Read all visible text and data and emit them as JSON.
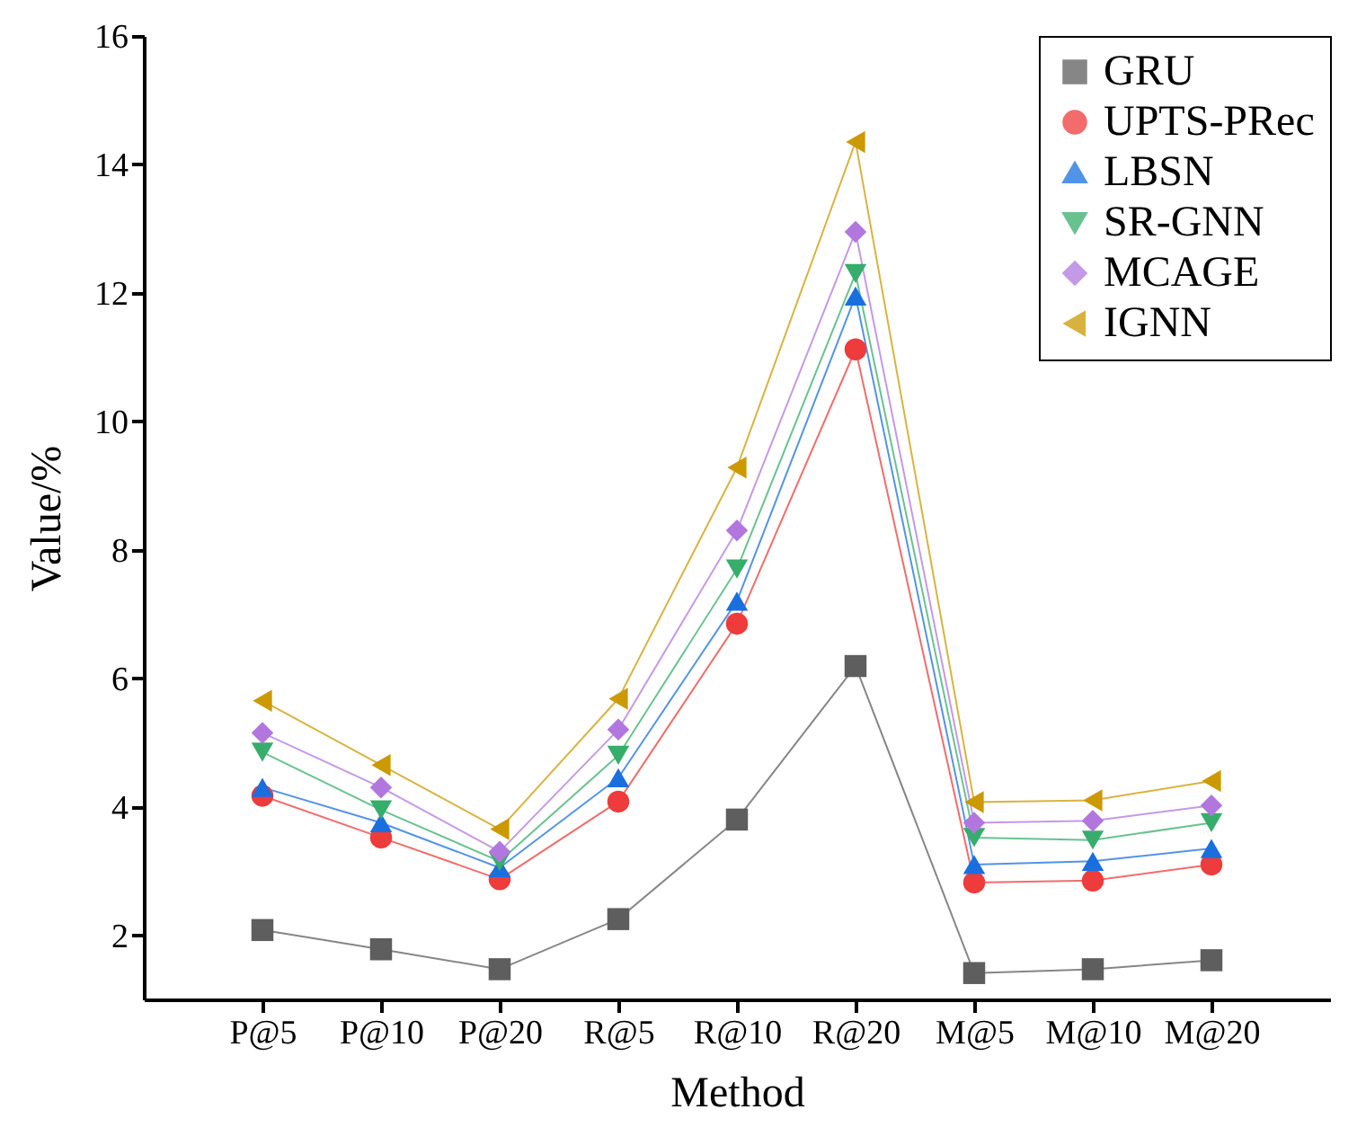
{
  "chart_data": {
    "type": "line",
    "xlabel": "Method",
    "ylabel": "Value/%",
    "categories": [
      "P@5",
      "P@10",
      "P@20",
      "R@5",
      "R@10",
      "R@20",
      "M@5",
      "M@10",
      "M@20"
    ],
    "ylim": [
      1,
      16
    ],
    "yticks": [
      2,
      4,
      6,
      8,
      10,
      12,
      14,
      16
    ],
    "grid": false,
    "legend": "top right",
    "line_style": "solid",
    "series": [
      {
        "name": "GRU",
        "color": "#5e5e5e",
        "marker": "square",
        "values": [
          2.08,
          1.78,
          1.47,
          2.25,
          3.8,
          6.19,
          1.41,
          1.47,
          1.61
        ]
      },
      {
        "name": "UPTS-PRec",
        "color": "#ee3b3b",
        "marker": "circle",
        "values": [
          4.17,
          3.52,
          2.87,
          4.08,
          6.85,
          11.12,
          2.82,
          2.85,
          3.1
        ]
      },
      {
        "name": "LBSN",
        "color": "#1a6fdf",
        "marker": "triangle",
        "values": [
          4.3,
          3.75,
          3.05,
          4.45,
          7.2,
          11.95,
          3.1,
          3.15,
          3.35
        ]
      },
      {
        "name": "SR-GNN",
        "color": "#37ad6b",
        "marker": "triangle-down",
        "values": [
          4.85,
          3.95,
          3.15,
          4.8,
          7.7,
          12.3,
          3.52,
          3.48,
          3.75
        ]
      },
      {
        "name": "MCAGE",
        "color": "#b177de",
        "marker": "diamond",
        "values": [
          5.15,
          4.3,
          3.3,
          5.2,
          8.3,
          12.95,
          3.75,
          3.78,
          4.02
        ]
      },
      {
        "name": "IGNN",
        "color": "#cc9900",
        "marker": "triangle-left",
        "values": [
          5.65,
          4.65,
          3.65,
          5.68,
          9.28,
          14.35,
          4.07,
          4.1,
          4.4
        ]
      }
    ]
  }
}
